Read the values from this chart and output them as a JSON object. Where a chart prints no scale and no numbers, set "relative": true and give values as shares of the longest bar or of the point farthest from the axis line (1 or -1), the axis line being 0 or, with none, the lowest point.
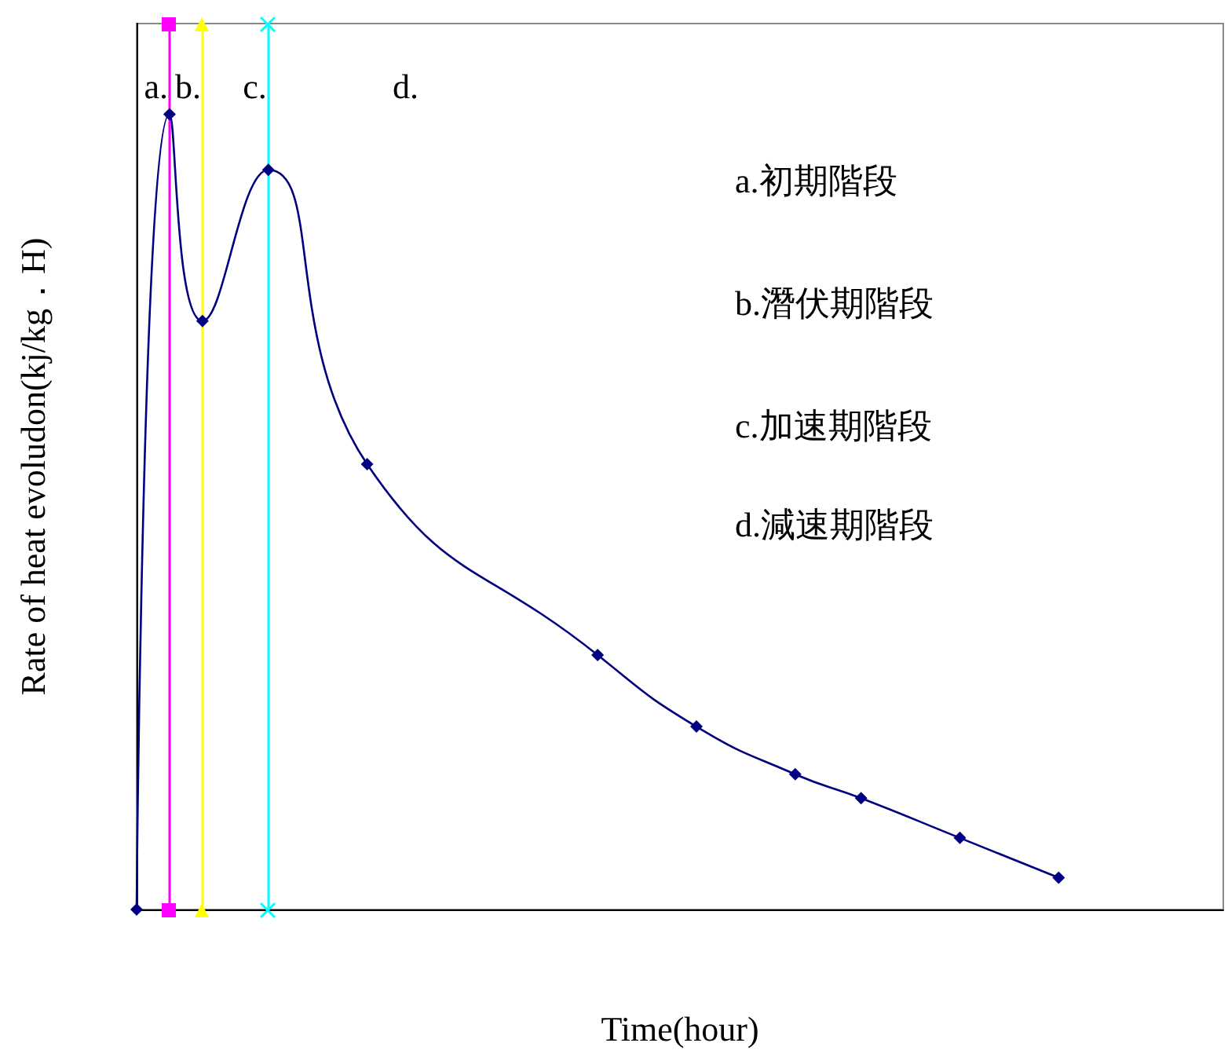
{
  "chart_data": {
    "type": "line",
    "relative": true,
    "xlabel": "Time(hour)",
    "ylabel": "Rate of heat evoludon(kj/kg．H)",
    "categories": [
      null,
      null,
      null,
      null,
      null,
      null,
      null,
      null,
      null,
      null,
      null,
      null,
      null,
      null,
      null,
      null,
      null,
      null,
      null,
      null,
      null,
      null,
      null,
      null,
      null,
      null,
      null,
      null,
      null,
      null,
      null,
      null,
      null,
      null
    ],
    "series": [
      {
        "color": "#000080",
        "values": [
          0,
          1,
          0.74,
          null,
          0.93,
          null,
          null,
          0.56,
          null,
          null,
          null,
          null,
          null,
          null,
          0.32,
          null,
          null,
          0.23,
          null,
          null,
          0.17,
          null,
          0.14,
          null,
          null,
          0.09,
          null,
          null,
          0.04,
          null,
          null,
          null,
          null,
          null
        ]
      }
    ],
    "marker": "diamond",
    "grid": false,
    "annotations": [
      "a.",
      "b.",
      "c.",
      "d.",
      "a.初期階段",
      "b.潛伏期階段",
      "c.加速期階段",
      "d.減速期階段"
    ]
  }
}
